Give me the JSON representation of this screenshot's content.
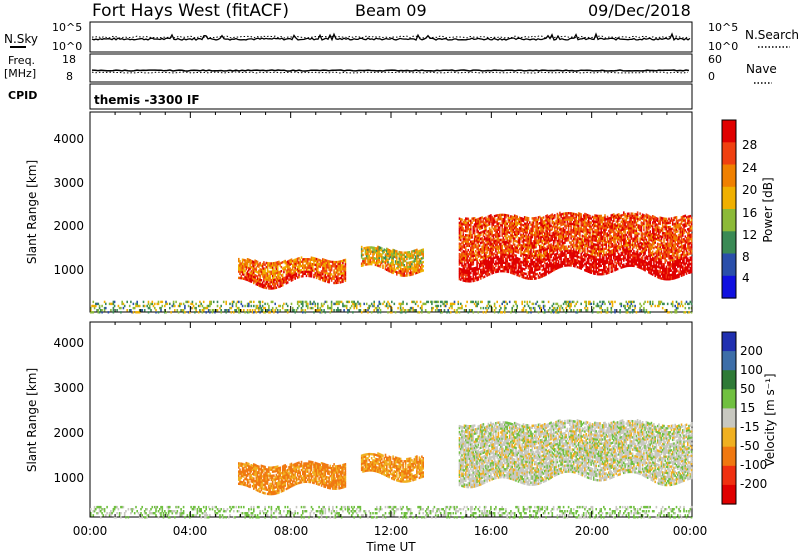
{
  "header": {
    "station": "Fort Hays West (fitACF)",
    "beam": "Beam 09",
    "date": "09/Dec/2018"
  },
  "top_panels": {
    "nsky_label": "N.Sky",
    "nsky_ticks": [
      "10^5",
      "10^0"
    ],
    "nsearch_label": "N.Search",
    "nsearch_ticks": [
      "10^5",
      "10^0"
    ],
    "freq_label_1": "Freq.",
    "freq_label_2": "[MHz]",
    "freq_ticks": [
      "18",
      "8"
    ],
    "nave_label": "Nave",
    "nave_ticks": [
      "60",
      "0"
    ],
    "cpid_label": "CPID",
    "cpid_text": "themis -3300 IF"
  },
  "axes": {
    "ylabel": "Slant Range [km]",
    "yticks": [
      "4000",
      "3000",
      "2000",
      "1000"
    ],
    "xticks": [
      "00:00",
      "04:00",
      "08:00",
      "12:00",
      "16:00",
      "20:00",
      "00:00"
    ],
    "xlabel": "Time UT"
  },
  "colorbars": {
    "power": {
      "label": "Power [dB]",
      "ticks": [
        "28",
        "24",
        "20",
        "16",
        "12",
        "8",
        "4"
      ],
      "colors": [
        "#e00000",
        "#f04010",
        "#f08000",
        "#f0b000",
        "#8cba38",
        "#3a8a55",
        "#2a4faa",
        "#1010e0"
      ]
    },
    "velocity": {
      "label": "Velocity [m s⁻¹]",
      "ticks": [
        "200",
        "100",
        "50",
        "15",
        "-15",
        "-50",
        "-100",
        "-200"
      ],
      "colors": [
        "#2030b0",
        "#3d6ea8",
        "#2e7a36",
        "#70c040",
        "#c8c8c0",
        "#f0b020",
        "#f07810",
        "#f03010",
        "#e00000"
      ]
    }
  },
  "chart_data": [
    {
      "type": "heatmap",
      "title": "Power",
      "xlabel": "Time UT",
      "ylabel": "Slant Range [km]",
      "x_range_hours": [
        0,
        24
      ],
      "y_range_km": [
        180,
        4500
      ],
      "colorbar_label": "Power [dB]",
      "colorbar_range": [
        0,
        30
      ],
      "echo_regions": [
        {
          "t_start": 5.9,
          "t_end": 10.2,
          "range_km": [
            900,
            1350
          ],
          "power_db": 22
        },
        {
          "t_start": 10.8,
          "t_end": 13.3,
          "range_km": [
            1050,
            1550
          ],
          "power_db": 16
        },
        {
          "t_start": 14.7,
          "t_end": 24.0,
          "range_km": [
            1050,
            2300
          ],
          "power_db": 26
        },
        {
          "t_start": 0.0,
          "t_end": 24.0,
          "range_km": [
            200,
            450
          ],
          "power_db": 12
        }
      ]
    },
    {
      "type": "heatmap",
      "title": "Velocity",
      "xlabel": "Time UT",
      "ylabel": "Slant Range [km]",
      "x_range_hours": [
        0,
        24
      ],
      "y_range_km": [
        180,
        4500
      ],
      "colorbar_label": "Velocity [m s⁻¹]",
      "colorbar_range": [
        -200,
        200
      ],
      "echo_regions": [
        {
          "t_start": 5.9,
          "t_end": 10.2,
          "range_km": [
            900,
            1400
          ],
          "velocity": -60
        },
        {
          "t_start": 10.8,
          "t_end": 13.3,
          "range_km": [
            1050,
            1550
          ],
          "velocity": -50
        },
        {
          "t_start": 14.7,
          "t_end": 24.0,
          "range_km": [
            1050,
            2300
          ],
          "velocity": 0
        },
        {
          "t_start": 0.0,
          "t_end": 24.0,
          "range_km": [
            200,
            450
          ],
          "velocity": 20
        }
      ]
    }
  ]
}
